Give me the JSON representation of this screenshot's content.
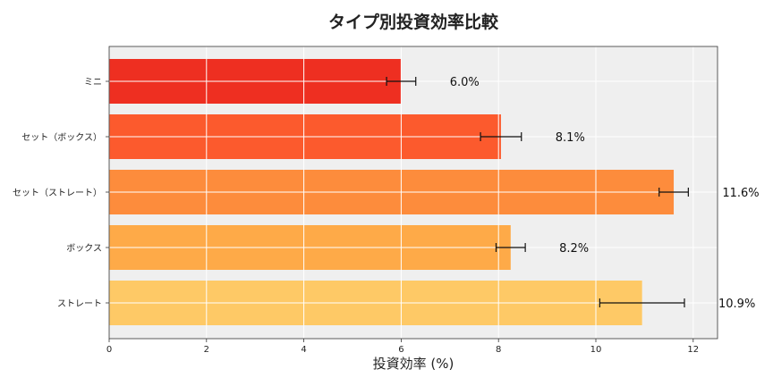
{
  "chart_data": {
    "type": "bar",
    "orientation": "horizontal",
    "title": "タイプ別投資効率比較",
    "xlabel": "投資効率 (%)",
    "ylabel": "",
    "xlim": [
      0,
      12.5
    ],
    "xticks": [
      0,
      2,
      4,
      6,
      8,
      10,
      12
    ],
    "grid": true,
    "categories": [
      "ミニ",
      "セット（ボックス）",
      "セット（ストレート）",
      "ボックス",
      "ストレート"
    ],
    "values": [
      6.0,
      8.05,
      11.6,
      8.25,
      10.95
    ],
    "errors": [
      0.3,
      0.42,
      0.3,
      0.3,
      0.87
    ],
    "data_labels": [
      "6.0%",
      "8.1%",
      "11.6%",
      "8.2%",
      "10.9%"
    ],
    "colors": [
      "#ee2f21",
      "#fc5a2d",
      "#fd8c3c",
      "#feaa48",
      "#fec966"
    ],
    "plot_background": "#efefef"
  }
}
